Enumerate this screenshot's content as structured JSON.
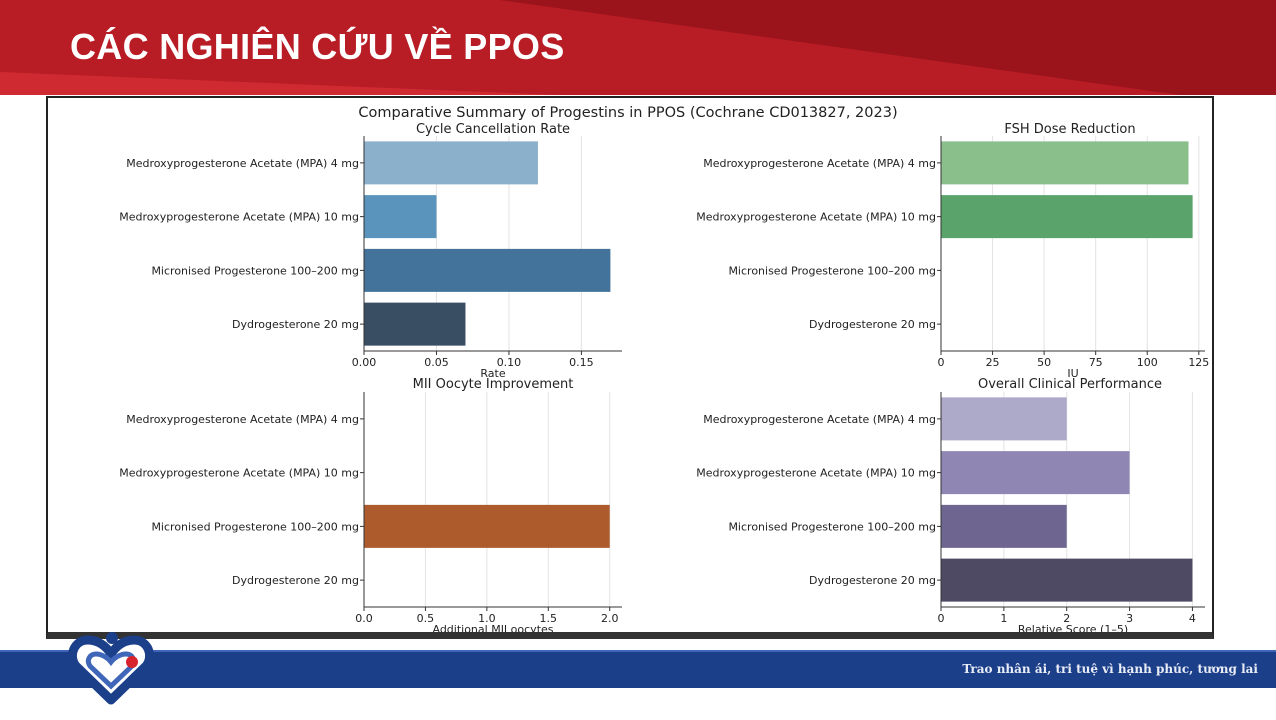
{
  "slide": {
    "title": "CÁC NGHIÊN CỨU VỀ PPOS",
    "tagline": "Trao nhân ái, tri tuệ vì hạnh phúc, tương lai"
  },
  "figure": {
    "suptitle": "Comparative Summary of Progestins in PPOS (Cochrane CD013827, 2023)"
  },
  "colors": {
    "header": "#b81c25",
    "footer": "#1c3f8a"
  },
  "chart_data": [
    {
      "type": "bar",
      "orientation": "horizontal",
      "title": "Cycle Cancellation Rate",
      "xlabel": "Rate",
      "ylabel": "",
      "categories": [
        "Medroxyprogesterone Acetate (MPA) 4 mg",
        "Medroxyprogesterone Acetate (MPA) 10 mg",
        "Micronised Progesterone 100–200 mg",
        "Dydrogesterone 20 mg"
      ],
      "values": [
        0.12,
        0.05,
        0.17,
        0.07
      ],
      "xlim": [
        0,
        0.178
      ],
      "xticks": [
        0.0,
        0.05,
        0.1,
        0.15
      ],
      "xtick_labels": [
        "0.00",
        "0.05",
        "0.10",
        "0.15"
      ],
      "colors": [
        "#8ab0cc",
        "#5a93bc",
        "#43739a",
        "#394e63"
      ],
      "grid": "vertical"
    },
    {
      "type": "bar",
      "orientation": "horizontal",
      "title": "FSH Dose Reduction",
      "xlabel": "IU",
      "ylabel": "",
      "categories": [
        "Medroxyprogesterone Acetate (MPA) 4 mg",
        "Medroxyprogesterone Acetate (MPA) 10 mg",
        "Micronised Progesterone 100–200 mg",
        "Dydrogesterone 20 mg"
      ],
      "values": [
        120,
        122,
        0,
        0
      ],
      "xlim": [
        0,
        128
      ],
      "xticks": [
        0,
        25,
        50,
        75,
        100,
        125
      ],
      "xtick_labels": [
        "0",
        "25",
        "50",
        "75",
        "100",
        "125"
      ],
      "colors": [
        "#8abf8c",
        "#5aa36b",
        "#3c7f4d",
        "#2b5e37"
      ],
      "grid": "vertical"
    },
    {
      "type": "bar",
      "orientation": "horizontal",
      "title": "MII Oocyte Improvement",
      "xlabel": "Additional MII oocytes",
      "ylabel": "",
      "categories": [
        "Medroxyprogesterone Acetate (MPA) 4 mg",
        "Medroxyprogesterone Acetate (MPA) 10 mg",
        "Micronised Progesterone 100–200 mg",
        "Dydrogesterone 20 mg"
      ],
      "values": [
        0,
        0,
        2.0,
        0
      ],
      "xlim": [
        0,
        2.1
      ],
      "xticks": [
        0,
        0.5,
        1.0,
        1.5,
        2.0
      ],
      "xtick_labels": [
        "0.0",
        "0.5",
        "1.0",
        "1.5",
        "2.0"
      ],
      "colors": [
        "#e0a070",
        "#cc7e45",
        "#ad5a2d",
        "#7f3d1c"
      ],
      "grid": "vertical"
    },
    {
      "type": "bar",
      "orientation": "horizontal",
      "title": "Overall Clinical Performance",
      "xlabel": "Relative Score (1–5)",
      "ylabel": "",
      "categories": [
        "Medroxyprogesterone Acetate (MPA) 4 mg",
        "Medroxyprogesterone Acetate (MPA) 10 mg",
        "Micronised Progesterone 100–200 mg",
        "Dydrogesterone 20 mg"
      ],
      "values": [
        2,
        3,
        2,
        4
      ],
      "xlim": [
        0,
        4.2
      ],
      "xticks": [
        0,
        1,
        2,
        3,
        4
      ],
      "xtick_labels": [
        "0",
        "1",
        "2",
        "3",
        "4"
      ],
      "colors": [
        "#ada9c9",
        "#8f86b3",
        "#6e6690",
        "#4f4a63"
      ],
      "grid": "vertical"
    }
  ]
}
